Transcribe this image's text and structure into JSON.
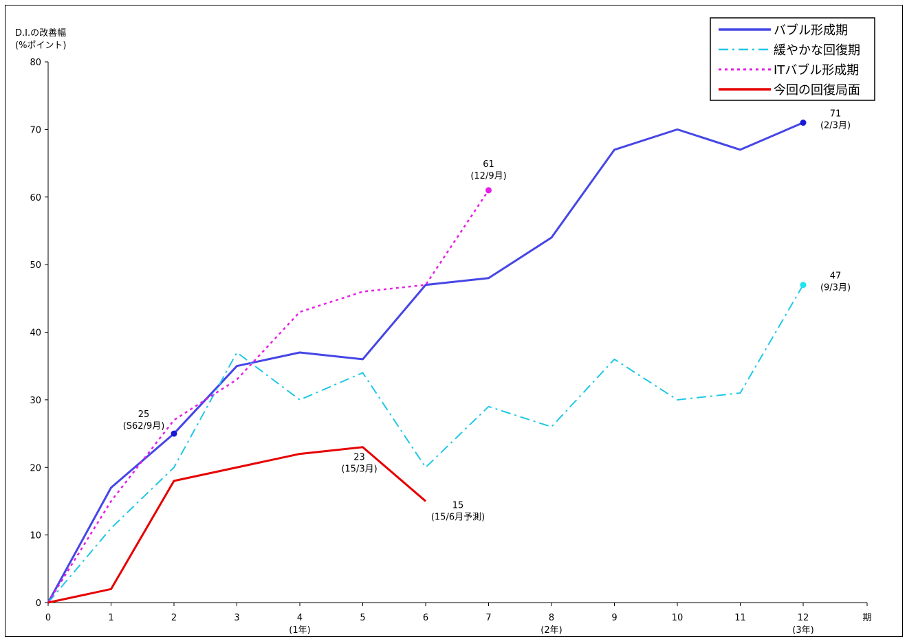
{
  "chart_data": {
    "type": "line",
    "ylabel_line1": "D.I.の改善幅",
    "ylabel_line2": "(%ポイント)",
    "xlabel": "期",
    "ylim": [
      0,
      80
    ],
    "yticks": [
      0,
      10,
      20,
      30,
      40,
      50,
      60,
      70,
      80
    ],
    "xlim": [
      0,
      13
    ],
    "xticks": [
      0,
      1,
      2,
      3,
      4,
      5,
      6,
      7,
      8,
      9,
      10,
      11,
      12
    ],
    "x_sublabels": [
      {
        "x": 4,
        "label": "(1年)"
      },
      {
        "x": 8,
        "label": "(2年)"
      },
      {
        "x": 12,
        "label": "(3年)"
      }
    ],
    "legend_position": "top-right",
    "grid": false,
    "series": [
      {
        "name": "バブル形成期",
        "color": "#4646e6",
        "dash": "solid",
        "x": [
          0,
          1,
          2,
          3,
          4,
          5,
          6,
          7,
          8,
          9,
          10,
          11,
          12
        ],
        "values": [
          0,
          17,
          25,
          35,
          37,
          36,
          47,
          48,
          54,
          67,
          70,
          67,
          71
        ]
      },
      {
        "name": "緩やかな回復期",
        "color": "#1ec8e6",
        "dash": "dashdot",
        "x": [
          0,
          1,
          2,
          3,
          4,
          5,
          6,
          7,
          8,
          9,
          10,
          11,
          12
        ],
        "values": [
          0,
          11,
          20,
          37,
          30,
          34,
          20,
          29,
          26,
          36,
          30,
          31,
          47
        ]
      },
      {
        "name": "ITバブル形成期",
        "color": "#e61ee6",
        "dash": "dotted",
        "x": [
          0,
          1,
          2,
          3,
          4,
          5,
          6,
          7
        ],
        "values": [
          0,
          15,
          27,
          33,
          43,
          46,
          47,
          61
        ]
      },
      {
        "name": "今回の回復局面",
        "color": "#e60000",
        "dash": "solid",
        "x": [
          0,
          1,
          2,
          3,
          4,
          5,
          6
        ],
        "values": [
          0,
          2,
          18,
          20,
          22,
          23,
          15
        ]
      }
    ],
    "markers": [
      {
        "x": 2,
        "y": 25,
        "color": "#1a1ad6"
      },
      {
        "x": 12,
        "y": 71,
        "color": "#1a1ad6"
      },
      {
        "x": 7,
        "y": 61,
        "color": "#e61ee6"
      },
      {
        "x": 12,
        "y": 47,
        "color": "#1ee6f0"
      }
    ],
    "annotations": [
      {
        "x": 2,
        "y": 25,
        "line1": "25",
        "line2": "(S62/9月)",
        "place": "above"
      },
      {
        "x": 12,
        "y": 71,
        "line1": "71",
        "line2": "(2/3月)",
        "place": "right"
      },
      {
        "x": 7,
        "y": 61,
        "line1": "61",
        "line2": "(12/9月)",
        "place": "above"
      },
      {
        "x": 12,
        "y": 47,
        "line1": "47",
        "line2": "(9/3月)",
        "place": "right"
      },
      {
        "x": 5,
        "y": 23,
        "line1": "23",
        "line2": "(15/3月)",
        "place": "below"
      },
      {
        "x": 6,
        "y": 15,
        "line1": "15",
        "line2": "(15/6月予測)",
        "place": "right-below"
      }
    ]
  }
}
